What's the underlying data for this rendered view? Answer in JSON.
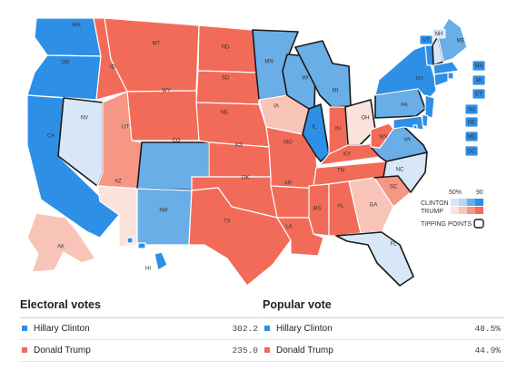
{
  "colors": {
    "clinton_dark": "#2e8fe6",
    "clinton_mid": "#6aaee8",
    "clinton_light": "#b7d4f1",
    "clinton_pale": "#d8e7f7",
    "trump_dark": "#f26b58",
    "trump_mid": "#f69684",
    "trump_light": "#f9c4b8",
    "trump_pale": "#fbe3dc",
    "tipping_outline": "#1a1a1a"
  },
  "states": [
    {
      "abbr": "WA",
      "lean": "clinton_dark"
    },
    {
      "abbr": "OR",
      "lean": "clinton_dark"
    },
    {
      "abbr": "CA",
      "lean": "clinton_dark"
    },
    {
      "abbr": "NV",
      "lean": "clinton_pale",
      "tipping": true
    },
    {
      "abbr": "ID",
      "lean": "trump_dark"
    },
    {
      "abbr": "MT",
      "lean": "trump_dark"
    },
    {
      "abbr": "WY",
      "lean": "trump_dark"
    },
    {
      "abbr": "UT",
      "lean": "trump_mid"
    },
    {
      "abbr": "AZ",
      "lean": "trump_pale"
    },
    {
      "abbr": "CO",
      "lean": "clinton_mid",
      "tipping": true
    },
    {
      "abbr": "NM",
      "lean": "clinton_mid"
    },
    {
      "abbr": "ND",
      "lean": "trump_dark"
    },
    {
      "abbr": "SD",
      "lean": "trump_dark"
    },
    {
      "abbr": "NE",
      "lean": "trump_dark"
    },
    {
      "abbr": "KS",
      "lean": "trump_dark"
    },
    {
      "abbr": "OK",
      "lean": "trump_dark"
    },
    {
      "abbr": "TX",
      "lean": "trump_dark"
    },
    {
      "abbr": "MN",
      "lean": "clinton_mid",
      "tipping": true
    },
    {
      "abbr": "IA",
      "lean": "trump_light"
    },
    {
      "abbr": "MO",
      "lean": "trump_dark"
    },
    {
      "abbr": "AR",
      "lean": "trump_dark"
    },
    {
      "abbr": "LA",
      "lean": "trump_dark"
    },
    {
      "abbr": "WI",
      "lean": "clinton_mid",
      "tipping": true
    },
    {
      "abbr": "IL",
      "lean": "clinton_dark",
      "tipping": true
    },
    {
      "abbr": "MI",
      "lean": "clinton_mid",
      "tipping": true
    },
    {
      "abbr": "IN",
      "lean": "trump_dark"
    },
    {
      "abbr": "OH",
      "lean": "trump_pale",
      "tipping": true
    },
    {
      "abbr": "KY",
      "lean": "trump_dark"
    },
    {
      "abbr": "TN",
      "lean": "trump_dark"
    },
    {
      "abbr": "MS",
      "lean": "trump_dark"
    },
    {
      "abbr": "AL",
      "lean": "trump_dark"
    },
    {
      "abbr": "GA",
      "lean": "trump_light"
    },
    {
      "abbr": "FL",
      "lean": "clinton_pale",
      "tipping": true
    },
    {
      "abbr": "SC",
      "lean": "trump_mid"
    },
    {
      "abbr": "NC",
      "lean": "clinton_pale",
      "tipping": true
    },
    {
      "abbr": "VA",
      "lean": "clinton_mid",
      "tipping": true
    },
    {
      "abbr": "WV",
      "lean": "trump_dark"
    },
    {
      "abbr": "PA",
      "lean": "clinton_mid",
      "tipping": true
    },
    {
      "abbr": "NY",
      "lean": "clinton_dark"
    },
    {
      "abbr": "VT",
      "lean": "clinton_dark"
    },
    {
      "abbr": "NH",
      "lean": "clinton_pale",
      "tipping": true
    },
    {
      "abbr": "ME",
      "lean": "clinton_mid"
    },
    {
      "abbr": "MA",
      "lean": "clinton_dark"
    },
    {
      "abbr": "RI",
      "lean": "clinton_dark"
    },
    {
      "abbr": "CT",
      "lean": "clinton_dark"
    },
    {
      "abbr": "NJ",
      "lean": "clinton_dark"
    },
    {
      "abbr": "DE",
      "lean": "clinton_dark"
    },
    {
      "abbr": "MD",
      "lean": "clinton_dark"
    },
    {
      "abbr": "DC",
      "lean": "clinton_dark"
    },
    {
      "abbr": "AK",
      "lean": "trump_light"
    },
    {
      "abbr": "HI",
      "lean": "clinton_dark"
    }
  ],
  "legend": {
    "pct_low": "50%",
    "pct_high": "90",
    "clinton_label": "CLINTON",
    "trump_label": "TRUMP",
    "tipping_label": "TIPPING POINTS"
  },
  "electoral": {
    "title": "Electoral votes",
    "rows": [
      {
        "name": "Hillary Clinton",
        "value": "302.2",
        "color": "#2e8fe6"
      },
      {
        "name": "Donald Trump",
        "value": "235.0",
        "color": "#f26b58"
      }
    ]
  },
  "popular": {
    "title": "Popular vote",
    "rows": [
      {
        "name": "Hillary Clinton",
        "value": "48.5%",
        "color": "#2e8fe6"
      },
      {
        "name": "Donald Trump",
        "value": "44.9%",
        "color": "#f26b58"
      }
    ]
  }
}
